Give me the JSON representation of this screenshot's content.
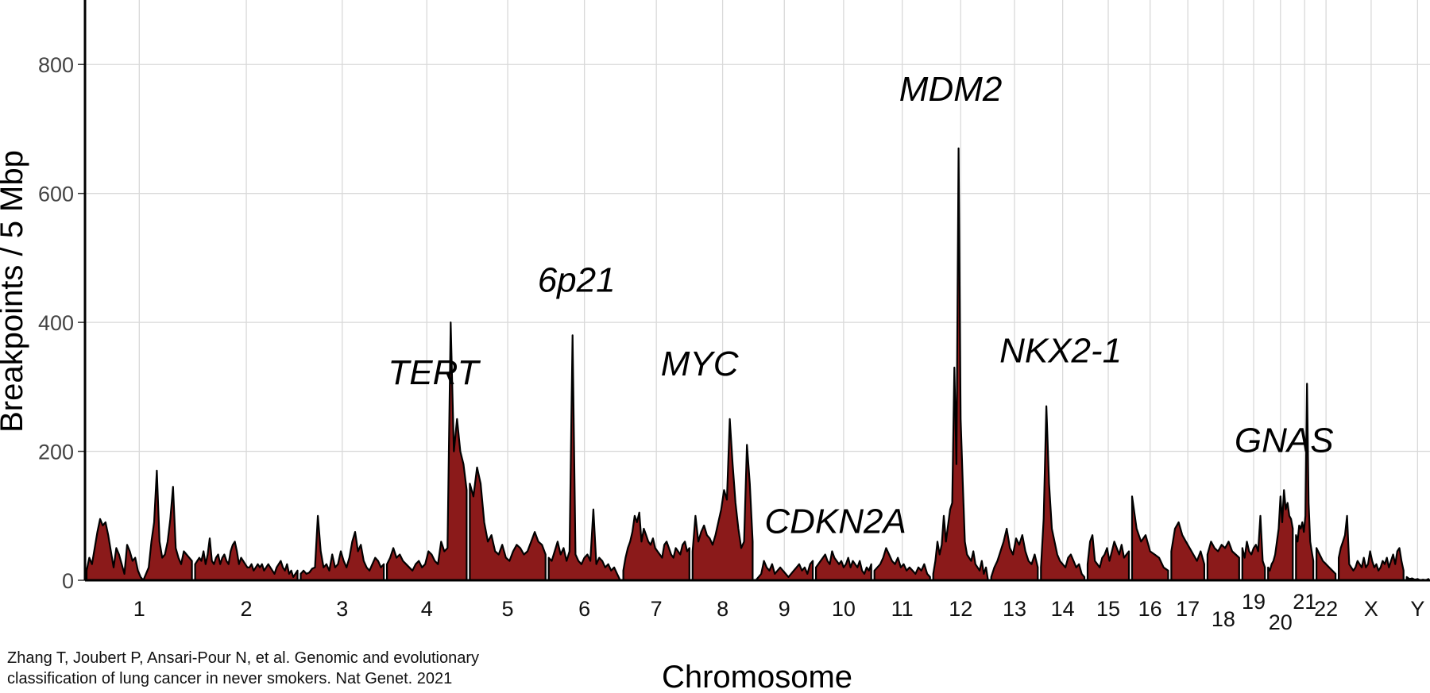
{
  "citation": {
    "line1": "Zhang T, Joubert P, Ansari-Pour N, et al. Genomic and evolutionary",
    "line2": "classification of lung cancer in never smokers. Nat Genet. 2021"
  },
  "chart_data": {
    "type": "area",
    "title": "",
    "xlabel": "Chromosome",
    "ylabel": "Breakpoints / 5 Mbp",
    "ylim": [
      0,
      900
    ],
    "yticks": [
      0,
      200,
      400,
      600,
      800
    ],
    "grid": true,
    "colors": {
      "fill": "#8b1a1a",
      "line": "#000000",
      "grid": "#d9d9d9",
      "axis": "#000000"
    },
    "chromosomes": [
      {
        "name": "1",
        "length_mbp": 249
      },
      {
        "name": "2",
        "length_mbp": 242
      },
      {
        "name": "3",
        "length_mbp": 198
      },
      {
        "name": "4",
        "length_mbp": 190
      },
      {
        "name": "5",
        "length_mbp": 181
      },
      {
        "name": "6",
        "length_mbp": 171
      },
      {
        "name": "7",
        "length_mbp": 159
      },
      {
        "name": "8",
        "length_mbp": 145
      },
      {
        "name": "9",
        "length_mbp": 138
      },
      {
        "name": "10",
        "length_mbp": 134
      },
      {
        "name": "11",
        "length_mbp": 135
      },
      {
        "name": "12",
        "length_mbp": 133
      },
      {
        "name": "13",
        "length_mbp": 114
      },
      {
        "name": "14",
        "length_mbp": 107
      },
      {
        "name": "15",
        "length_mbp": 102
      },
      {
        "name": "16",
        "length_mbp": 90
      },
      {
        "name": "17",
        "length_mbp": 83
      },
      {
        "name": "18",
        "length_mbp": 80
      },
      {
        "name": "19",
        "length_mbp": 59
      },
      {
        "name": "20",
        "length_mbp": 64
      },
      {
        "name": "21",
        "length_mbp": 47
      },
      {
        "name": "22",
        "length_mbp": 51
      },
      {
        "name": "X",
        "length_mbp": 156
      },
      {
        "name": "Y",
        "length_mbp": 57
      }
    ],
    "series": [
      {
        "breakpoints_per_5mbp": [
          [
            15,
            35,
            25,
            50,
            75,
            95,
            85,
            90,
            70,
            45,
            20,
            50,
            40,
            25,
            10,
            55,
            45,
            30,
            35,
            15,
            5,
            0,
            10,
            20,
            60,
            90,
            170,
            60,
            35,
            40,
            60,
            95,
            145,
            50,
            35,
            25,
            45,
            40,
            35,
            30
          ],
          [
            25,
            30,
            35,
            30,
            45,
            25,
            40,
            65,
            30,
            25,
            35,
            40,
            25,
            35,
            40,
            30,
            25,
            45,
            55,
            60,
            45,
            25,
            35,
            30,
            25,
            20,
            20,
            25,
            15,
            20,
            25,
            20,
            25,
            15,
            20,
            25,
            20,
            15,
            10,
            20,
            25,
            30,
            20,
            15,
            25,
            10,
            15,
            5,
            10,
            15
          ],
          [
            10,
            15,
            10,
            12,
            18,
            20,
            100,
            45,
            20,
            25,
            15,
            40,
            20,
            25,
            45,
            30,
            20,
            35,
            60,
            75,
            45,
            55,
            30,
            20,
            15,
            25,
            35,
            30,
            20,
            25
          ],
          [
            25,
            35,
            50,
            35,
            40,
            30,
            25,
            20,
            15,
            25,
            30,
            20,
            25,
            45,
            40,
            30,
            25,
            60,
            45,
            50,
            400,
            200,
            250,
            200,
            180,
            140
          ],
          [
            150,
            130,
            175,
            150,
            90,
            60,
            70,
            45,
            40,
            55,
            35,
            30,
            45,
            55,
            50,
            40,
            45,
            60,
            75,
            60,
            55,
            40
          ],
          [
            35,
            30,
            45,
            60,
            40,
            50,
            30,
            45,
            380,
            40,
            30,
            25,
            35,
            40,
            30,
            110,
            25,
            35,
            30,
            20,
            25,
            15,
            20,
            10,
            0
          ],
          [
            15,
            35,
            50,
            60,
            75,
            100,
            90,
            105,
            60,
            80,
            70,
            60,
            55,
            65,
            50,
            45,
            40,
            35,
            55,
            60,
            50,
            40,
            35,
            50,
            45,
            40,
            55,
            60,
            45,
            50
          ],
          [
            45,
            100,
            60,
            75,
            85,
            70,
            65,
            55,
            70,
            90,
            110,
            140,
            125,
            250,
            180,
            120,
            80,
            50,
            60,
            210,
            150,
            60
          ],
          [
            0,
            5,
            10,
            30,
            20,
            15,
            25,
            10,
            15,
            20,
            15,
            10,
            5,
            10,
            15,
            20,
            25,
            15,
            20,
            10,
            25,
            30
          ],
          [
            20,
            25,
            30,
            35,
            40,
            30,
            25,
            45,
            35,
            30,
            25,
            30,
            20,
            25,
            35,
            20,
            30,
            25,
            20,
            30,
            15,
            10,
            20,
            15,
            25
          ],
          [
            15,
            20,
            25,
            35,
            50,
            40,
            30,
            25,
            35,
            20,
            25,
            15,
            20,
            15,
            10,
            20,
            15,
            25,
            10,
            5
          ],
          [
            10,
            30,
            60,
            40,
            55,
            100,
            60,
            85,
            110,
            120,
            330,
            180,
            670,
            250,
            150,
            60,
            40,
            35,
            30,
            45,
            25,
            20,
            15,
            30,
            10,
            20,
            0
          ],
          [
            5,
            20,
            30,
            45,
            60,
            80,
            50,
            40,
            65,
            55,
            70,
            45,
            30,
            25,
            40,
            20
          ],
          [
            20,
            95,
            270,
            150,
            80,
            60,
            40,
            30,
            25,
            20,
            35,
            40,
            30,
            20,
            25,
            10,
            5
          ],
          [
            25,
            60,
            70,
            30,
            25,
            20,
            35,
            40,
            50,
            30,
            45,
            60,
            50,
            40,
            55,
            35,
            40,
            45
          ],
          [
            130,
            80,
            60,
            70,
            45,
            40,
            35,
            20,
            15
          ],
          [
            45,
            80,
            90,
            70,
            60,
            50,
            40,
            30,
            45,
            25
          ],
          [
            40,
            60,
            50,
            45,
            55,
            50,
            60,
            45,
            40,
            35
          ],
          [
            50,
            35,
            60,
            45,
            40,
            50,
            55,
            45,
            100,
            30,
            20
          ],
          [
            20,
            15,
            25,
            30,
            40,
            60,
            80,
            130,
            90,
            140,
            110,
            120,
            100,
            95,
            80
          ],
          [
            70,
            60,
            85,
            80,
            90,
            75,
            100,
            305,
            120,
            60,
            45,
            30
          ],
          [
            50,
            40,
            30,
            25,
            20,
            15,
            10
          ],
          [
            35,
            50,
            60,
            70,
            100,
            25,
            20,
            15,
            20,
            30,
            25,
            20,
            35,
            20,
            25,
            45,
            30,
            20,
            25,
            15,
            20,
            30,
            25,
            35,
            20,
            30,
            40,
            25,
            45,
            50,
            30,
            15
          ],
          [
            5,
            2,
            3,
            1,
            2,
            0,
            1,
            0,
            2
          ]
        ]
      }
    ],
    "annotations": [
      {
        "text": "TERT",
        "chromosome": "5"
      },
      {
        "text": "6p21",
        "chromosome": "6"
      },
      {
        "text": "MYC",
        "chromosome": "8"
      },
      {
        "text": "CDKN2A",
        "chromosome": "9"
      },
      {
        "text": "MDM2",
        "chromosome": "12"
      },
      {
        "text": "NKX2-1",
        "chromosome": "14"
      },
      {
        "text": "GNAS",
        "chromosome": "20"
      }
    ]
  }
}
